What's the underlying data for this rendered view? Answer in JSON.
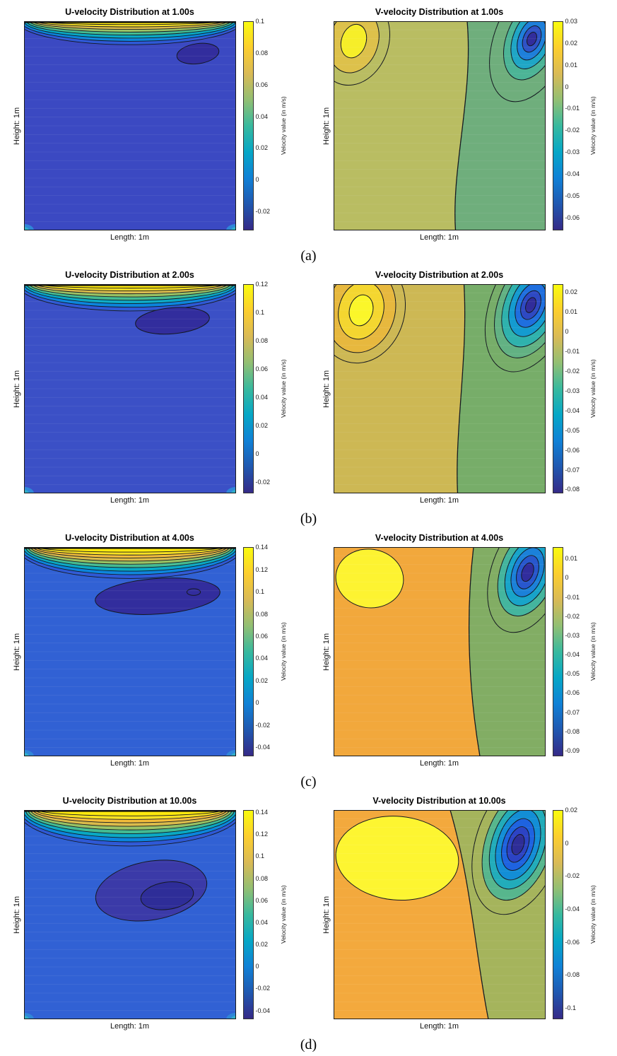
{
  "row_labels": [
    "(a)",
    "(b)",
    "(c)",
    "(d)"
  ],
  "palette": {
    "parula": [
      "#352a87",
      "#2058b0",
      "#1081d6",
      "#06a7c6",
      "#38b99e",
      "#92bf73",
      "#d9ba56",
      "#fcce2e",
      "#f9fb0e"
    ]
  },
  "chart_data": [
    {
      "type": "heatmap",
      "subtype": "filled-contour",
      "title": "U-velocity Distribution at 1.00s",
      "time_s": 1.0,
      "xlabel": "Length: 1m",
      "ylabel": "Height: 1m",
      "colorbar_label": "Velocity value (in m/s)",
      "colormap": "parula",
      "vmin": -0.032,
      "vmax": 0.1,
      "colorbar_ticks": [
        0.1,
        0.08,
        0.06,
        0.04,
        0.02,
        0,
        -0.02
      ],
      "description": "Lid-driven cavity U-velocity at t=1s: thin high-speed band (~0.1 m/s, yellow) along the moving top lid, bulk fluid near 0 to -0.01 m/s (dark blue), small negative pocket just below the lid on the right.",
      "features": {
        "field": "u",
        "bg": "#3b49c2",
        "band": [
          [
            0.53,
            0.112,
            "#2e59d6"
          ],
          [
            0.515,
            0.096,
            "#0b85dc"
          ],
          [
            0.5,
            0.081,
            "#09a8c3"
          ],
          [
            0.487,
            0.066,
            "#44bb92"
          ],
          [
            0.473,
            0.052,
            "#97c163"
          ],
          [
            0.458,
            0.039,
            "#dabb4b"
          ],
          [
            0.443,
            0.027,
            "#f6df24"
          ],
          [
            0.428,
            0.016,
            "#ffe90d"
          ]
        ],
        "blobs": [
          [
            0.82,
            0.155,
            0.1,
            0.048,
            -8,
            "#322d9d"
          ]
        ]
      }
    },
    {
      "type": "heatmap",
      "subtype": "filled-contour",
      "title": "V-velocity Distribution at 1.00s",
      "time_s": 1.0,
      "xlabel": "Length: 1m",
      "ylabel": "Height: 1m",
      "colorbar_label": "Velocity value (in m/s)",
      "colormap": "parula",
      "vmin": -0.066,
      "vmax": 0.03,
      "colorbar_ticks": [
        0.03,
        0.02,
        0.01,
        0,
        -0.01,
        -0.02,
        -0.03,
        -0.04,
        -0.05,
        -0.06
      ],
      "description": "V-velocity at t=1s: weak upward cell (yellow, ~+0.03 m/s) in top-left, strong downward jet (dark blue, ~-0.06 m/s) at top-right corner, near-zero field elsewhere.",
      "features": {
        "field": "v",
        "bg_left": "#b9bd62",
        "bg_right": "#6fae7c",
        "div": [
          0.63,
          0.03,
          0.575,
          -0.02
        ],
        "pos": {
          "cx": 0.095,
          "cy": 0.095,
          "rot": 18,
          "rings": [
            [
              0.165,
              0.215,
              null
            ],
            [
              0.115,
              0.155,
              "#ddc14b"
            ],
            [
              0.058,
              0.082,
              "#f6ee29"
            ]
          ]
        },
        "neg": {
          "cx": 0.935,
          "cy": 0.085,
          "rot": 22,
          "rings": [
            [
              0.175,
              0.315,
              null
            ],
            [
              0.118,
              0.205,
              "#4cb496"
            ],
            [
              0.088,
              0.15,
              "#1fa6c6"
            ],
            [
              0.062,
              0.105,
              "#1e7fda"
            ],
            [
              0.04,
              0.066,
              "#2f52c6"
            ],
            [
              0.021,
              0.034,
              "#322d9c"
            ]
          ]
        }
      }
    },
    {
      "type": "heatmap",
      "subtype": "filled-contour",
      "title": "U-velocity Distribution at 2.00s",
      "time_s": 2.0,
      "xlabel": "Length: 1m",
      "ylabel": "Height: 1m",
      "colorbar_label": "Velocity value (in m/s)",
      "colormap": "parula",
      "vmin": -0.028,
      "vmax": 0.12,
      "colorbar_ticks": [
        0.12,
        0.1,
        0.08,
        0.06,
        0.04,
        0.02,
        0,
        -0.02
      ],
      "description": "U-velocity at t=2s: lid band strengthens to ~0.12 m/s; growing negative recirculation pocket (dark indigo, ~-0.02 m/s) under the lid, centered right of middle.",
      "features": {
        "field": "u",
        "bg": "#3b50c6",
        "band": [
          [
            0.53,
            0.128,
            "#2e59d6"
          ],
          [
            0.515,
            0.11,
            "#0b85dc"
          ],
          [
            0.5,
            0.093,
            "#09a8c3"
          ],
          [
            0.487,
            0.077,
            "#44bb92"
          ],
          [
            0.473,
            0.061,
            "#97c163"
          ],
          [
            0.458,
            0.046,
            "#dabb4b"
          ],
          [
            0.443,
            0.032,
            "#f6df24"
          ],
          [
            0.428,
            0.019,
            "#ffe90d"
          ]
        ],
        "blobs": [
          [
            0.7,
            0.175,
            0.175,
            0.062,
            -5,
            "#322d9d"
          ]
        ]
      }
    },
    {
      "type": "heatmap",
      "subtype": "filled-contour",
      "title": "V-velocity Distribution at 2.00s",
      "time_s": 2.0,
      "xlabel": "Length: 1m",
      "ylabel": "Height: 1m",
      "colorbar_label": "Velocity value (in m/s)",
      "colormap": "parula",
      "vmin": -0.082,
      "vmax": 0.024,
      "colorbar_ticks": [
        0.02,
        0.01,
        0,
        -0.01,
        -0.02,
        -0.03,
        -0.04,
        -0.05,
        -0.06,
        -0.07,
        -0.08
      ],
      "description": "V-velocity at t=2s: upward cell in top-left grows (~+0.02 m/s), downward jet at top-right deepens to ~-0.08 m/s with tight nested contours.",
      "features": {
        "field": "v",
        "bg_left": "#cdb854",
        "bg_right": "#77ad69",
        "div": [
          0.615,
          0.02,
          0.585,
          -0.015
        ],
        "pos": {
          "cx": 0.13,
          "cy": 0.125,
          "rot": 15,
          "rings": [
            [
              0.205,
              0.255,
              null
            ],
            [
              0.16,
              0.205,
              "#e7b83e"
            ],
            [
              0.105,
              0.14,
              "#f4d630"
            ],
            [
              0.055,
              0.075,
              "#fbf62a"
            ]
          ]
        },
        "neg": {
          "cx": 0.93,
          "cy": 0.1,
          "rot": 22,
          "rings": [
            [
              0.19,
              0.335,
              null
            ],
            [
              0.152,
              0.265,
              "#62b183"
            ],
            [
              0.122,
              0.21,
              "#2fb2ad"
            ],
            [
              0.093,
              0.158,
              "#149bd0"
            ],
            [
              0.066,
              0.112,
              "#1f6fdf"
            ],
            [
              0.043,
              0.072,
              "#2e49c3"
            ],
            [
              0.022,
              0.038,
              "#312c9a"
            ]
          ]
        }
      }
    },
    {
      "type": "heatmap",
      "subtype": "filled-contour",
      "title": "U-velocity Distribution at 4.00s",
      "time_s": 4.0,
      "xlabel": "Length: 1m",
      "ylabel": "Height: 1m",
      "colorbar_label": "Velocity value (in m/s)",
      "colormap": "parula",
      "vmin": -0.048,
      "vmax": 0.14,
      "colorbar_ticks": [
        0.14,
        0.12,
        0.1,
        0.08,
        0.06,
        0.04,
        0.02,
        0,
        -0.02,
        -0.04
      ],
      "description": "U-velocity at t=4s: lid band reaches ~0.14 m/s; wide negative return-flow lobe (dark indigo, ~-0.04 m/s) spans much of the upper cavity below the band.",
      "features": {
        "field": "u",
        "bg": "#3161d4",
        "band": [
          [
            0.53,
            0.15,
            "#2e59d6"
          ],
          [
            0.517,
            0.132,
            "#0b85dc"
          ],
          [
            0.504,
            0.115,
            "#09a8c3"
          ],
          [
            0.492,
            0.098,
            "#44bb92"
          ],
          [
            0.48,
            0.082,
            "#97c163"
          ],
          [
            0.468,
            0.067,
            "#dabb4b"
          ],
          [
            0.456,
            0.052,
            "#f3bd3a"
          ],
          [
            0.444,
            0.038,
            "#f8e122"
          ],
          [
            0.432,
            0.024,
            "#ffe90d"
          ]
        ],
        "blobs": [
          [
            0.63,
            0.235,
            0.295,
            0.085,
            -4,
            "#322d9d"
          ],
          [
            0.8,
            0.215,
            0.032,
            0.016,
            0,
            "none"
          ]
        ]
      }
    },
    {
      "type": "heatmap",
      "subtype": "filled-contour",
      "title": "V-velocity Distribution at 4.00s",
      "time_s": 4.0,
      "xlabel": "Length: 1m",
      "ylabel": "Height: 1m",
      "colorbar_label": "Velocity value (in m/s)",
      "colormap": "parula",
      "vmin": -0.093,
      "vmax": 0.016,
      "colorbar_ticks": [
        0.01,
        0,
        -0.01,
        -0.02,
        -0.03,
        -0.04,
        -0.05,
        -0.06,
        -0.07,
        -0.08,
        -0.09
      ],
      "description": "V-velocity at t=4s: bright-yellow upward cell (~+0.01 m/s) in upper-left over an orange background; downward jet at top-right deepens to ~-0.09 m/s.",
      "features": {
        "field": "v",
        "bg_left": "#f2a83c",
        "bg_right": "#82ad64",
        "div": [
          0.66,
          -0.04,
          0.69,
          -0.05
        ],
        "pos": {
          "cx": 0.17,
          "cy": 0.15,
          "rot": 8,
          "rings": [
            [
              0.16,
              0.14,
              "#fdf331"
            ]
          ]
        },
        "neg": {
          "cx": 0.915,
          "cy": 0.12,
          "rot": 20,
          "rings": [
            [
              0.17,
              0.3,
              null
            ],
            [
              0.128,
              0.218,
              "#44b59e"
            ],
            [
              0.097,
              0.167,
              "#18a4c9"
            ],
            [
              0.071,
              0.122,
              "#1b81d9"
            ],
            [
              0.048,
              0.083,
              "#2857cd"
            ],
            [
              0.026,
              0.046,
              "#312d9d"
            ]
          ]
        }
      }
    },
    {
      "type": "heatmap",
      "subtype": "filled-contour",
      "title": "U-velocity Distribution at 10.00s",
      "time_s": 10.0,
      "xlabel": "Length: 1m",
      "ylabel": "Height: 1m",
      "colorbar_label": "Velocity value (in m/s)",
      "colormap": "parula",
      "vmin": -0.048,
      "vmax": 0.142,
      "colorbar_ticks": [
        0.14,
        0.12,
        0.1,
        0.08,
        0.06,
        0.04,
        0.02,
        0,
        -0.02,
        -0.04
      ],
      "description": "U-velocity at t=10s (near steady state): thick lid band (~0.14 m/s); large negative recirculation core (~-0.04 m/s, nested contours) centered right of middle at mid-height.",
      "features": {
        "field": "u",
        "bg": "#3161d4",
        "band": [
          [
            0.53,
            0.172,
            "#2e59d6"
          ],
          [
            0.517,
            0.152,
            "#0b85dc"
          ],
          [
            0.504,
            0.132,
            "#09a8c3"
          ],
          [
            0.492,
            0.113,
            "#44bb92"
          ],
          [
            0.48,
            0.095,
            "#97c163"
          ],
          [
            0.468,
            0.078,
            "#dabb4b"
          ],
          [
            0.456,
            0.061,
            "#f3bd3a"
          ],
          [
            0.444,
            0.045,
            "#f8e122"
          ],
          [
            0.432,
            0.028,
            "#ffe90d"
          ]
        ],
        "blobs": [
          [
            0.6,
            0.385,
            0.265,
            0.14,
            -10,
            "#3b3aa8"
          ],
          [
            0.675,
            0.41,
            0.125,
            0.065,
            -8,
            "#2e2d98"
          ]
        ]
      }
    },
    {
      "type": "heatmap",
      "subtype": "filled-contour",
      "title": "V-velocity Distribution at 10.00s",
      "time_s": 10.0,
      "xlabel": "Length: 1m",
      "ylabel": "Height: 1m",
      "colorbar_label": "Velocity value (in m/s)",
      "colormap": "parula",
      "vmin": -0.107,
      "vmax": 0.02,
      "colorbar_ticks": [
        0.02,
        0,
        -0.02,
        -0.04,
        -0.06,
        -0.08,
        -0.1
      ],
      "description": "V-velocity at t=10s: very large bright-yellow upward region (~+0.02 m/s) covering the left half over orange background; intense downward jet at top-right reaching ~-0.1 m/s.",
      "features": {
        "field": "v",
        "bg_left": "#f3a93d",
        "bg_right": "#a5b45c",
        "div": [
          0.55,
          0.1,
          0.73,
          -0.06
        ],
        "pos": {
          "cx": 0.3,
          "cy": 0.23,
          "rot": 5,
          "rings": [
            [
              0.29,
              0.2,
              "#fdf531"
            ]
          ]
        },
        "neg": {
          "cx": 0.87,
          "cy": 0.165,
          "rot": 18,
          "rings": [
            [
              0.2,
              0.345,
              null
            ],
            [
              0.155,
              0.275,
              "#57b68d"
            ],
            [
              0.124,
              0.22,
              "#22acba"
            ],
            [
              0.097,
              0.175,
              "#138ed6"
            ],
            [
              0.071,
              0.128,
              "#1e63e0"
            ],
            [
              0.048,
              0.088,
              "#2c43c4"
            ],
            [
              0.027,
              0.05,
              "#2e2d97"
            ]
          ]
        }
      }
    }
  ]
}
